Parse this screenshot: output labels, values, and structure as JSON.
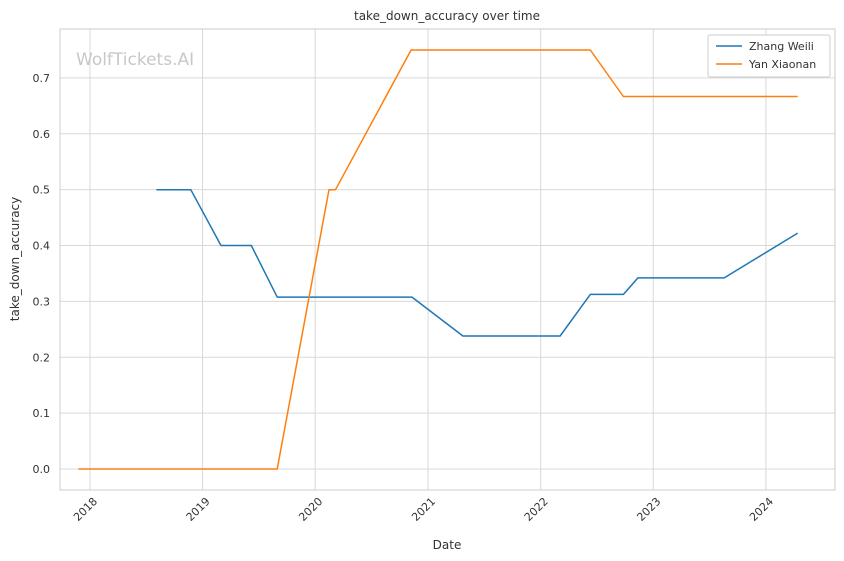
{
  "chart_data": {
    "type": "line",
    "title": "take_down_accuracy over time",
    "xlabel": "Date",
    "ylabel": "take_down_accuracy",
    "watermark": "WolfTickets.AI",
    "x_ticks": [
      "2018",
      "2019",
      "2020",
      "2021",
      "2022",
      "2023",
      "2024"
    ],
    "y_ticks": [
      "0.0",
      "0.1",
      "0.2",
      "0.3",
      "0.4",
      "0.5",
      "0.6",
      "0.7"
    ],
    "xlim": [
      "2017-09-26",
      "2024-08-12"
    ],
    "ylim": [
      -0.0375,
      0.7875
    ],
    "grid": true,
    "legend_position": "top-right",
    "series": [
      {
        "name": "Zhang Weili",
        "color": "#1f77b4",
        "points": [
          [
            "2018-08-04",
            0.5
          ],
          [
            "2018-11-24",
            0.5
          ],
          [
            "2019-03-02",
            0.4
          ],
          [
            "2019-06-08",
            0.4
          ],
          [
            "2019-08-31",
            0.3077
          ],
          [
            "2020-11-10",
            0.3077
          ],
          [
            "2021-04-24",
            0.2381
          ],
          [
            "2022-03-05",
            0.2381
          ],
          [
            "2022-06-11",
            0.3125
          ],
          [
            "2022-09-26",
            0.3125
          ],
          [
            "2022-11-12",
            0.3421
          ],
          [
            "2023-08-19",
            0.3421
          ],
          [
            "2024-04-13",
            0.4222
          ]
        ]
      },
      {
        "name": "Yan Xiaonan",
        "color": "#ff7f0e",
        "points": [
          [
            "2017-11-25",
            0.0
          ],
          [
            "2019-08-31",
            0.0
          ],
          [
            "2020-02-15",
            0.5
          ],
          [
            "2020-03-07",
            0.5
          ],
          [
            "2020-11-07",
            0.75
          ],
          [
            "2022-06-11",
            0.75
          ],
          [
            "2022-09-26",
            0.6667
          ],
          [
            "2024-04-13",
            0.6667
          ]
        ]
      }
    ]
  }
}
